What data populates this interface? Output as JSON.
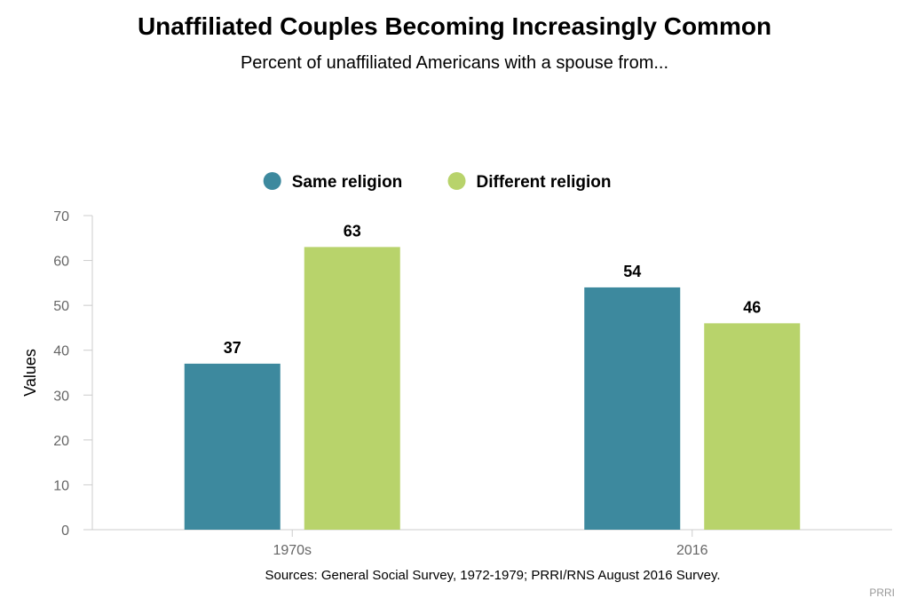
{
  "chart_data": {
    "type": "bar",
    "title": "Unaffiliated Couples Becoming Increasingly Common",
    "subtitle": "Percent of unaffiliated Americans with a spouse from...",
    "categories": [
      "1970s",
      "2016"
    ],
    "series": [
      {
        "name": "Same religion",
        "values": [
          37,
          54
        ],
        "color": "#3d899e"
      },
      {
        "name": "Different religion",
        "values": [
          63,
          46
        ],
        "color": "#b8d36b"
      }
    ],
    "ylabel": "Values",
    "xlabel": "",
    "ylim": [
      0,
      70
    ],
    "yticks": [
      0,
      10,
      20,
      30,
      40,
      50,
      60,
      70
    ],
    "grid": false,
    "legend_position": "top-center",
    "data_labels": true
  },
  "footer": {
    "source": "Sources: General Social Survey, 1972-1979; PRRI/RNS August 2016 Survey.",
    "credit": "PRRI"
  }
}
